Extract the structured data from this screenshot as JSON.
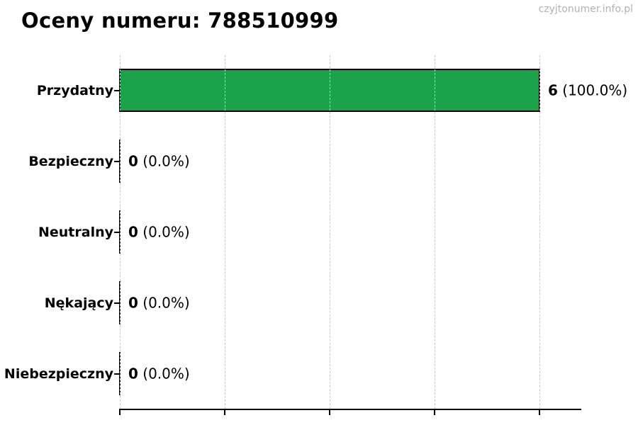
{
  "title": "Oceny numeru: 788510999",
  "watermark": "czyjtonumer.info.pl",
  "chart_data": {
    "type": "bar",
    "orientation": "horizontal",
    "title": "Oceny numeru: 788510999",
    "categories": [
      "Przydatny",
      "Bezpieczny",
      "Neutralny",
      "Nękający",
      "Niebezpieczny"
    ],
    "values": [
      6,
      0,
      0,
      0,
      0
    ],
    "percentages": [
      100.0,
      0.0,
      0.0,
      0.0,
      0.0
    ],
    "value_number_labels": [
      "6",
      "0",
      "0",
      "0",
      "0"
    ],
    "value_percent_labels": [
      "(100.0%)",
      "(0.0%)",
      "(0.0%)",
      "(0.0%)",
      "(0.0%)"
    ],
    "xlabel": "",
    "ylabel": "",
    "xlim": [
      0,
      6.6
    ],
    "x_ticks": [
      0,
      1.5,
      3,
      4.5,
      6
    ],
    "x_tick_labels_visible": false,
    "grid": "vertical-dashed",
    "legend": "none",
    "bar_color": "#1aa34a",
    "bar_border_color": "#000000",
    "gridline_color": "#c9c9c9",
    "watermark_color": "#b2b2b2"
  }
}
